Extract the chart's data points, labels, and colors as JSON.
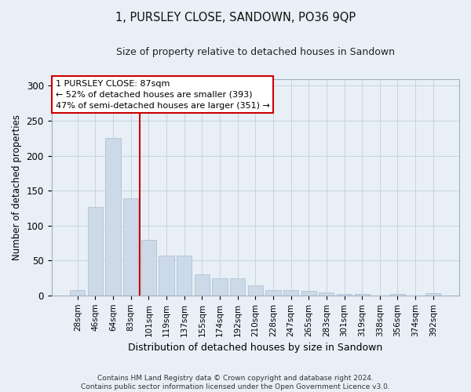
{
  "title": "1, PURSLEY CLOSE, SANDOWN, PO36 9QP",
  "subtitle": "Size of property relative to detached houses in Sandown",
  "xlabel": "Distribution of detached houses by size in Sandown",
  "ylabel": "Number of detached properties",
  "categories": [
    "28sqm",
    "46sqm",
    "64sqm",
    "83sqm",
    "101sqm",
    "119sqm",
    "137sqm",
    "155sqm",
    "174sqm",
    "192sqm",
    "210sqm",
    "228sqm",
    "247sqm",
    "265sqm",
    "283sqm",
    "301sqm",
    "319sqm",
    "338sqm",
    "356sqm",
    "374sqm",
    "392sqm"
  ],
  "values": [
    8,
    127,
    225,
    139,
    79,
    57,
    57,
    30,
    24,
    24,
    14,
    8,
    8,
    7,
    4,
    2,
    2,
    0,
    2,
    0,
    3
  ],
  "bar_color": "#ccd9e8",
  "bar_edge_color": "#aabccc",
  "vline_color": "#cc0000",
  "vline_position": 3.5,
  "annotation_text": "1 PURSLEY CLOSE: 87sqm\n← 52% of detached houses are smaller (393)\n47% of semi-detached houses are larger (351) →",
  "annotation_box_color": "#ffffff",
  "annotation_box_edge": "#cc0000",
  "grid_color": "#c8d4df",
  "bg_color": "#e8eff6",
  "fig_color": "#e8eff6",
  "footer": "Contains HM Land Registry data © Crown copyright and database right 2024.\nContains public sector information licensed under the Open Government Licence v3.0.",
  "ylim": [
    0,
    310
  ],
  "yticks": [
    0,
    50,
    100,
    150,
    200,
    250,
    300
  ]
}
